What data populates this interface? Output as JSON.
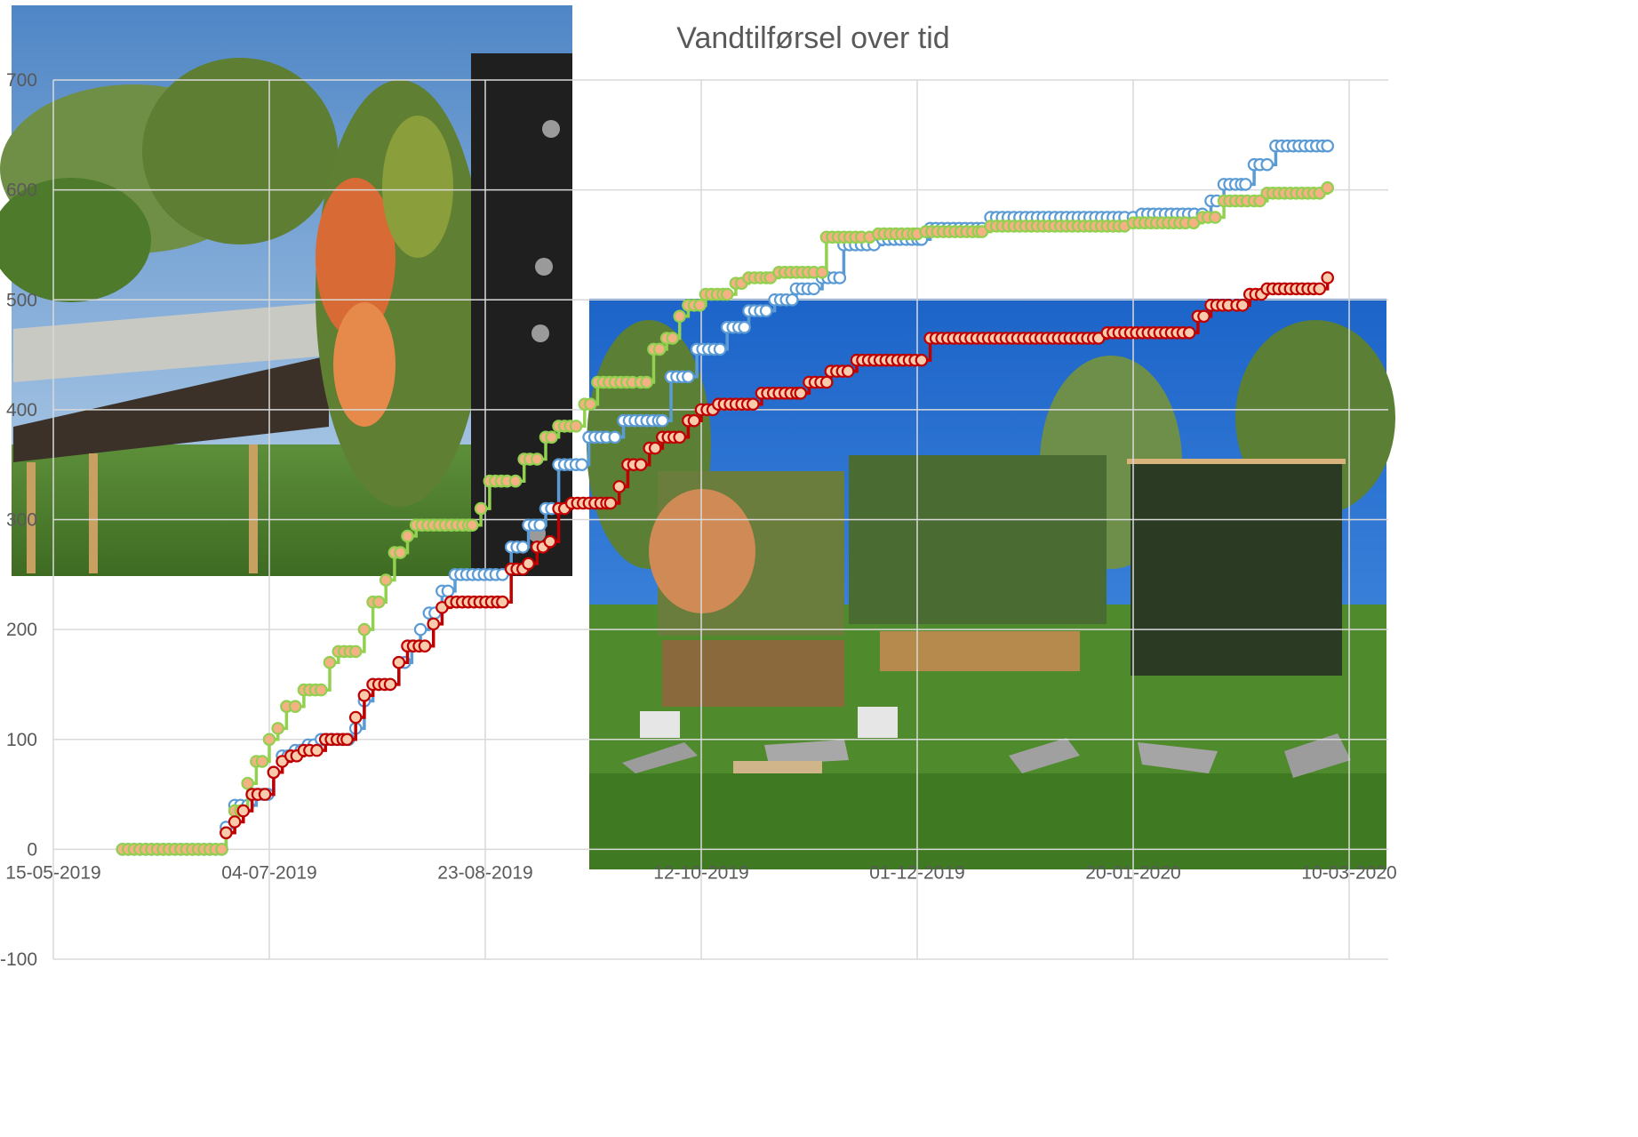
{
  "chart_data": {
    "type": "line",
    "title": "Vandtilførsel over tid",
    "xlabel": "",
    "ylabel": "",
    "x_tick_labels": [
      "15-05-2019",
      "04-07-2019",
      "23-08-2019",
      "12-10-2019",
      "01-12-2019",
      "20-01-2020",
      "10-03-2020"
    ],
    "y_tick_labels": [
      "-100",
      "0",
      "100",
      "200",
      "300",
      "400",
      "500",
      "600",
      "700"
    ],
    "xlim": [
      "2019-05-15",
      "2020-03-10"
    ],
    "ylim": [
      -100,
      700
    ],
    "grid": true,
    "legend": "none",
    "series": [
      {
        "color": "#5b9bd5",
        "marker_fill": "#ffffff",
        "points": [
          [
            "2019-05-31",
            0
          ],
          [
            "2019-06-23",
            0
          ],
          [
            "2019-06-24",
            20
          ],
          [
            "2019-06-26",
            40
          ],
          [
            "2019-06-29",
            40
          ],
          [
            "2019-07-01",
            50
          ],
          [
            "2019-07-05",
            70
          ],
          [
            "2019-07-07",
            85
          ],
          [
            "2019-07-10",
            90
          ],
          [
            "2019-07-13",
            95
          ],
          [
            "2019-07-16",
            100
          ],
          [
            "2019-07-21",
            100
          ],
          [
            "2019-07-24",
            110
          ],
          [
            "2019-07-26",
            135
          ],
          [
            "2019-07-28",
            150
          ],
          [
            "2019-08-01",
            150
          ],
          [
            "2019-08-03",
            170
          ],
          [
            "2019-08-06",
            185
          ],
          [
            "2019-08-08",
            200
          ],
          [
            "2019-08-10",
            215
          ],
          [
            "2019-08-13",
            235
          ],
          [
            "2019-08-16",
            250
          ],
          [
            "2019-08-27",
            250
          ],
          [
            "2019-08-29",
            275
          ],
          [
            "2019-09-02",
            295
          ],
          [
            "2019-09-06",
            310
          ],
          [
            "2019-09-09",
            350
          ],
          [
            "2019-09-13",
            350
          ],
          [
            "2019-09-16",
            375
          ],
          [
            "2019-09-22",
            375
          ],
          [
            "2019-09-24",
            390
          ],
          [
            "2019-10-03",
            390
          ],
          [
            "2019-10-05",
            430
          ],
          [
            "2019-10-09",
            430
          ],
          [
            "2019-10-11",
            455
          ],
          [
            "2019-10-15",
            455
          ],
          [
            "2019-10-18",
            475
          ],
          [
            "2019-10-22",
            475
          ],
          [
            "2019-10-23",
            490
          ],
          [
            "2019-10-29",
            500
          ],
          [
            "2019-11-03",
            510
          ],
          [
            "2019-11-09",
            520
          ],
          [
            "2019-11-14",
            550
          ],
          [
            "2019-11-21",
            550
          ],
          [
            "2019-11-23",
            555
          ],
          [
            "2019-12-02",
            555
          ],
          [
            "2019-12-04",
            565
          ],
          [
            "2019-12-16",
            565
          ],
          [
            "2019-12-18",
            575
          ],
          [
            "2020-01-20",
            575
          ],
          [
            "2020-01-22",
            578
          ],
          [
            "2020-02-05",
            578
          ],
          [
            "2020-02-07",
            590
          ],
          [
            "2020-02-10",
            605
          ],
          [
            "2020-02-15",
            605
          ],
          [
            "2020-02-17",
            623
          ],
          [
            "2020-02-20",
            623
          ],
          [
            "2020-02-22",
            640
          ],
          [
            "2020-03-05",
            640
          ]
        ]
      },
      {
        "color": "#92d050",
        "marker_fill": "#f4b183",
        "points": [
          [
            "2019-05-31",
            0
          ],
          [
            "2019-06-23",
            0
          ],
          [
            "2019-06-24",
            15
          ],
          [
            "2019-06-26",
            35
          ],
          [
            "2019-06-29",
            60
          ],
          [
            "2019-07-01",
            80
          ],
          [
            "2019-07-04",
            100
          ],
          [
            "2019-07-06",
            110
          ],
          [
            "2019-07-08",
            130
          ],
          [
            "2019-07-10",
            130
          ],
          [
            "2019-07-12",
            145
          ],
          [
            "2019-07-16",
            145
          ],
          [
            "2019-07-18",
            170
          ],
          [
            "2019-07-20",
            180
          ],
          [
            "2019-07-24",
            180
          ],
          [
            "2019-07-26",
            200
          ],
          [
            "2019-07-28",
            225
          ],
          [
            "2019-07-31",
            245
          ],
          [
            "2019-08-02",
            270
          ],
          [
            "2019-08-05",
            285
          ],
          [
            "2019-08-07",
            295
          ],
          [
            "2019-08-20",
            295
          ],
          [
            "2019-08-22",
            310
          ],
          [
            "2019-08-24",
            335
          ],
          [
            "2019-08-30",
            335
          ],
          [
            "2019-09-01",
            355
          ],
          [
            "2019-09-04",
            355
          ],
          [
            "2019-09-06",
            375
          ],
          [
            "2019-09-09",
            385
          ],
          [
            "2019-09-13",
            385
          ],
          [
            "2019-09-15",
            405
          ],
          [
            "2019-09-18",
            425
          ],
          [
            "2019-09-28",
            425
          ],
          [
            "2019-10-01",
            455
          ],
          [
            "2019-10-04",
            465
          ],
          [
            "2019-10-07",
            485
          ],
          [
            "2019-10-09",
            495
          ],
          [
            "2019-10-13",
            505
          ],
          [
            "2019-10-18",
            505
          ],
          [
            "2019-10-20",
            515
          ],
          [
            "2019-10-23",
            520
          ],
          [
            "2019-10-28",
            520
          ],
          [
            "2019-10-30",
            525
          ],
          [
            "2019-11-09",
            525
          ],
          [
            "2019-11-10",
            557
          ],
          [
            "2019-11-20",
            557
          ],
          [
            "2019-11-22",
            560
          ],
          [
            "2019-12-01",
            560
          ],
          [
            "2019-12-03",
            562
          ],
          [
            "2019-12-16",
            562
          ],
          [
            "2019-12-18",
            567
          ],
          [
            "2020-01-18",
            567
          ],
          [
            "2020-01-20",
            570
          ],
          [
            "2020-02-03",
            570
          ],
          [
            "2020-02-05",
            575
          ],
          [
            "2020-02-08",
            575
          ],
          [
            "2020-02-10",
            590
          ],
          [
            "2020-02-17",
            590
          ],
          [
            "2020-02-20",
            597
          ],
          [
            "2020-03-05",
            602
          ]
        ]
      },
      {
        "color": "#c00000",
        "marker_fill": "#f8cbad",
        "points": [
          [
            "2019-06-24",
            15
          ],
          [
            "2019-06-26",
            25
          ],
          [
            "2019-06-28",
            35
          ],
          [
            "2019-06-30",
            50
          ],
          [
            "2019-07-03",
            50
          ],
          [
            "2019-07-05",
            70
          ],
          [
            "2019-07-07",
            80
          ],
          [
            "2019-07-09",
            85
          ],
          [
            "2019-07-12",
            90
          ],
          [
            "2019-07-15",
            90
          ],
          [
            "2019-07-17",
            100
          ],
          [
            "2019-07-22",
            100
          ],
          [
            "2019-07-24",
            120
          ],
          [
            "2019-07-26",
            140
          ],
          [
            "2019-07-28",
            150
          ],
          [
            "2019-08-01",
            150
          ],
          [
            "2019-08-03",
            170
          ],
          [
            "2019-08-05",
            185
          ],
          [
            "2019-08-09",
            185
          ],
          [
            "2019-08-11",
            205
          ],
          [
            "2019-08-13",
            220
          ],
          [
            "2019-08-15",
            225
          ],
          [
            "2019-08-27",
            225
          ],
          [
            "2019-08-29",
            255
          ],
          [
            "2019-09-02",
            260
          ],
          [
            "2019-09-04",
            275
          ],
          [
            "2019-09-07",
            280
          ],
          [
            "2019-09-09",
            310
          ],
          [
            "2019-09-12",
            315
          ],
          [
            "2019-09-21",
            315
          ],
          [
            "2019-09-23",
            330
          ],
          [
            "2019-09-25",
            350
          ],
          [
            "2019-09-28",
            350
          ],
          [
            "2019-09-30",
            365
          ],
          [
            "2019-10-03",
            375
          ],
          [
            "2019-10-07",
            375
          ],
          [
            "2019-10-09",
            390
          ],
          [
            "2019-10-12",
            400
          ],
          [
            "2019-10-16",
            405
          ],
          [
            "2019-10-24",
            405
          ],
          [
            "2019-10-26",
            415
          ],
          [
            "2019-11-04",
            415
          ],
          [
            "2019-11-06",
            425
          ],
          [
            "2019-11-11",
            435
          ],
          [
            "2019-11-15",
            435
          ],
          [
            "2019-11-17",
            445
          ],
          [
            "2019-12-02",
            445
          ],
          [
            "2019-12-04",
            465
          ],
          [
            "2020-01-12",
            465
          ],
          [
            "2020-01-14",
            470
          ],
          [
            "2020-02-02",
            470
          ],
          [
            "2020-02-04",
            485
          ],
          [
            "2020-02-07",
            495
          ],
          [
            "2020-02-13",
            495
          ],
          [
            "2020-02-16",
            505
          ],
          [
            "2020-02-20",
            510
          ],
          [
            "2020-03-05",
            520
          ]
        ]
      }
    ],
    "colors": {
      "gridline": "#d9d9d9",
      "text": "#595959",
      "marker_size_hint": "circle"
    }
  }
}
